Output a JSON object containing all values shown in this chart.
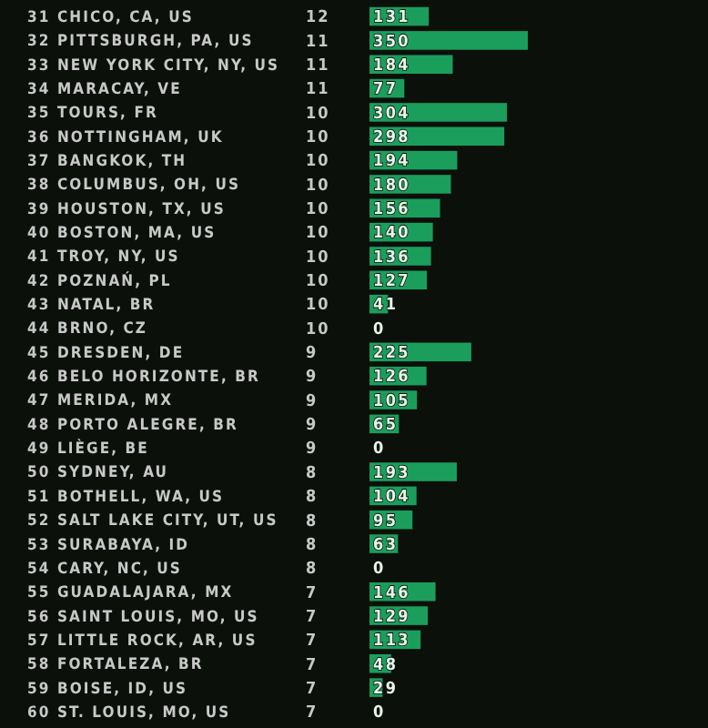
{
  "chart_data": {
    "type": "bar",
    "orientation": "horizontal",
    "data_labels": true,
    "categories": [
      "31 CHICO, CA, US",
      "32 PITTSBURGH, PA, US",
      "33 NEW YORK CITY, NY, US",
      "34 MARACAY, VE",
      "35 TOURS, FR",
      "36 NOTTINGHAM, UK",
      "37 BANGKOK, TH",
      "38 COLUMBUS, OH, US",
      "39 HOUSTON, TX, US",
      "40 BOSTON, MA, US",
      "41 TROY, NY, US",
      "42 POZNAŃ, PL",
      "43 NATAL, BR",
      "44 BRNO, CZ",
      "45 DRESDEN, DE",
      "46 BELO HORIZONTE, BR",
      "47 MERIDA, MX",
      "48 PORTO ALEGRE, BR",
      "49 LIÈGE, BE",
      "50 SYDNEY, AU",
      "51 BOTHELL, WA, US",
      "52 SALT LAKE CITY, UT, US",
      "53 SURABAYA, ID",
      "54 CARY, NC, US",
      "55 GUADALAJARA, MX",
      "56 SAINT LOUIS, MO, US",
      "57 LITTLE ROCK, AR, US",
      "58 FORTALEZA, BR",
      "59 BOISE, ID, US",
      "60 ST. LOUIS, MO, US"
    ],
    "values": [
      131,
      350,
      184,
      77,
      304,
      298,
      194,
      180,
      156,
      140,
      136,
      127,
      41,
      0,
      225,
      126,
      105,
      65,
      0,
      193,
      104,
      95,
      63,
      0,
      146,
      129,
      113,
      48,
      29,
      0
    ],
    "color": "#1b9e5c",
    "annotations": [
      "12",
      "11",
      "11",
      "11",
      "10",
      "10",
      "10",
      "10",
      "10",
      "10",
      "10",
      "10",
      "10",
      "10",
      "9",
      "9",
      "9",
      "9",
      "9",
      "8",
      "8",
      "8",
      "8",
      "8",
      "7",
      "7",
      "7",
      "7",
      "7",
      "7"
    ]
  }
}
